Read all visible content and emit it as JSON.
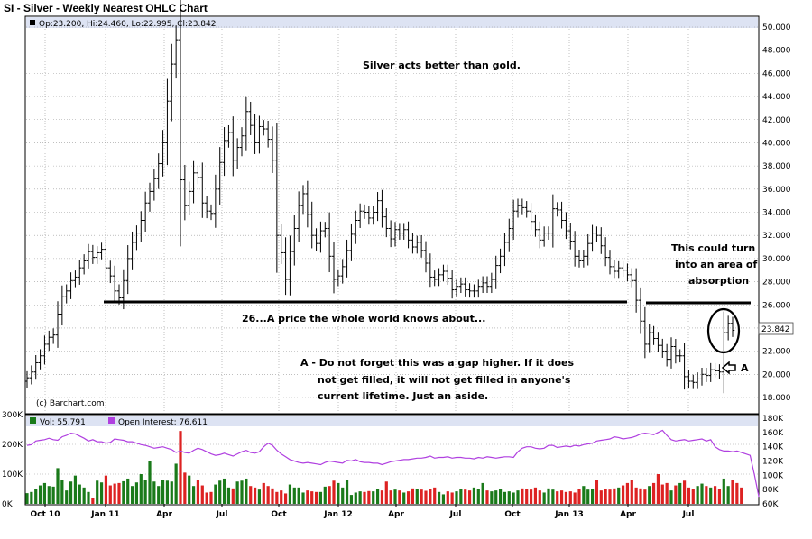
{
  "title": "SI - Silver - Weekly Nearest OHLC Chart",
  "ohlc_label": "Op:23.200, Hi:24.460, Lo:22.995, Cl:23.842",
  "last_price": "23.842",
  "credit": "(c) Barchart.com",
  "annotations": {
    "top": "Silver acts better than gold.",
    "right": [
      "This could turn",
      "into an area of",
      "absorption"
    ],
    "line26": "26...A price the whole world knows about...",
    "a_note": [
      "A - Do not forget this was a gap higher.  If it does",
      "not get filled, it will not get filled in anyone's",
      "current lifetime.   Just an aside."
    ],
    "a_label": "A"
  },
  "volume_legend": "Vol: 55,791",
  "oi_legend": "Open Interest: 76,611",
  "colors": {
    "up": "#1a7a1a",
    "down": "#dd2222",
    "oi": "#b040e0",
    "price": "#000000",
    "grid": "#999999"
  },
  "chart_data": [
    {
      "type": "ohlc",
      "title": "SI - Silver - Weekly Nearest OHLC Chart",
      "x_ticks": [
        "Oct 10",
        "Jan 11",
        "Apr",
        "Jul",
        "Oct",
        "Jan 12",
        "Apr",
        "Jul",
        "Oct",
        "Jan 13",
        "Apr",
        "Jul"
      ],
      "y_ticks": [
        "18.000",
        "20.000",
        "22.000",
        "24.000",
        "26.000",
        "28.000",
        "30.000",
        "32.000",
        "34.000",
        "36.000",
        "38.000",
        "40.000",
        "42.000",
        "44.000",
        "46.000",
        "48.000",
        "50.000"
      ],
      "ylim": [
        17,
        50.5
      ],
      "grid": true,
      "horizontal_level": 26.2,
      "closes": [
        19.7,
        20.2,
        21.0,
        21.6,
        22.6,
        23.2,
        23.4,
        25.2,
        26.7,
        27.2,
        28.1,
        28.4,
        29.2,
        29.8,
        30.6,
        30.1,
        30.5,
        30.8,
        29.2,
        28.5,
        27.2,
        26.6,
        28.1,
        30.0,
        31.4,
        32.2,
        33.3,
        34.8,
        35.8,
        36.9,
        38.2,
        40.0,
        43.6,
        46.8,
        48.9,
        36.8,
        34.6,
        35.8,
        37.4,
        37.0,
        34.8,
        34.1,
        33.9,
        36.0,
        38.3,
        40.2,
        40.9,
        38.5,
        39.6,
        40.6,
        42.7,
        41.5,
        40.0,
        41.4,
        41.2,
        40.3,
        38.5,
        32.0,
        30.5,
        28.2,
        30.6,
        32.6,
        34.6,
        35.6,
        33.8,
        32.0,
        31.3,
        32.4,
        32.6,
        30.2,
        28.2,
        28.5,
        29.3,
        30.7,
        32.1,
        33.3,
        34.1,
        34.0,
        33.5,
        34.0,
        35.0,
        33.6,
        32.6,
        31.7,
        32.5,
        32.2,
        32.5,
        31.6,
        31.0,
        31.4,
        30.7,
        29.6,
        28.4,
        28.2,
        28.6,
        28.9,
        28.3,
        27.3,
        27.6,
        27.8,
        27.3,
        27.2,
        27.2,
        27.6,
        27.9,
        27.6,
        28.2,
        29.4,
        30.2,
        31.4,
        32.6,
        34.1,
        34.6,
        34.4,
        34.1,
        33.2,
        32.5,
        31.6,
        32.2,
        32.2,
        34.3,
        34.2,
        33.3,
        32.4,
        31.5,
        30.2,
        29.8,
        30.2,
        31.3,
        32.2,
        32.0,
        31.1,
        30.1,
        29.3,
        28.9,
        29.2,
        29.0,
        28.6,
        28.1,
        26.4,
        24.6,
        22.6,
        23.6,
        23.1,
        22.5,
        22.0,
        21.3,
        22.4,
        21.6,
        21.6,
        19.8,
        19.4,
        19.3,
        19.6,
        20.0,
        19.9,
        20.4,
        20.3,
        20.2,
        23.6,
        24.4,
        23.8
      ],
      "volume_ylim": [
        0,
        300000
      ],
      "oi_ylim": [
        60000,
        180000
      ],
      "volume_ticks": [
        "0K",
        "100K",
        "200K",
        "300K"
      ],
      "oi_ticks": [
        "60K",
        "80K",
        "100K",
        "120K",
        "140K",
        "160K",
        "180K"
      ],
      "volume": [
        36000,
        40000,
        50000,
        62000,
        70000,
        60000,
        58000,
        120000,
        80000,
        45000,
        75000,
        95000,
        65000,
        55000,
        40000,
        20000,
        78000,
        72000,
        95000,
        62000,
        68000,
        70000,
        76000,
        85000,
        60000,
        72000,
        100000,
        80000,
        145000,
        75000,
        60000,
        80000,
        78000,
        75000,
        135000,
        245000,
        105000,
        95000,
        60000,
        80000,
        62000,
        38000,
        40000,
        65000,
        78000,
        85000,
        55000,
        52000,
        75000,
        78000,
        85000,
        60000,
        55000,
        48000,
        70000,
        60000,
        52000,
        40000,
        45000,
        35000,
        65000,
        55000,
        55000,
        38000,
        45000,
        42000,
        40000,
        40000,
        58000,
        60000,
        78000,
        70000,
        55000,
        80000,
        30000,
        38000,
        42000,
        40000,
        43000,
        42000,
        50000,
        45000,
        75000,
        45000,
        48000,
        45000,
        38000,
        42000,
        52000,
        50000,
        48000,
        44000,
        50000,
        55000,
        40000,
        32000,
        42000,
        38000,
        42000,
        50000,
        48000,
        45000,
        55000,
        50000,
        70000,
        45000,
        42000,
        45000,
        50000,
        40000,
        42000,
        38000,
        45000,
        52000,
        50000,
        48000,
        55000,
        45000,
        38000,
        52000,
        48000,
        42000,
        45000,
        40000,
        42000,
        38000,
        50000,
        60000,
        48000,
        50000,
        80000,
        45000,
        50000,
        48000,
        52000,
        55000,
        62000,
        70000,
        80000,
        55000,
        52000,
        48000,
        60000,
        70000,
        100000,
        65000,
        70000,
        45000,
        62000,
        70000,
        78000,
        55000,
        50000,
        60000,
        68000,
        60000,
        55000,
        60000,
        50000,
        85000,
        60000,
        80000,
        70000,
        55000
      ],
      "open_interest": [
        142000,
        143000,
        148000,
        149000,
        150000,
        152000,
        150000,
        149000,
        154000,
        156000,
        159000,
        158000,
        155000,
        152000,
        148000,
        150000,
        147000,
        147000,
        145000,
        146000,
        151000,
        150000,
        149000,
        147000,
        147000,
        145000,
        143000,
        142000,
        140000,
        138000,
        139000,
        140000,
        138000,
        136000,
        132000,
        134000,
        132000,
        131000,
        135000,
        138000,
        136000,
        133000,
        130000,
        128000,
        129000,
        131000,
        129000,
        127000,
        130000,
        133000,
        135000,
        132000,
        131000,
        133000,
        140000,
        145000,
        142000,
        135000,
        130000,
        126000,
        122000,
        120000,
        118000,
        117000,
        118000,
        117000,
        116000,
        115000,
        118000,
        120000,
        119000,
        118000,
        117000,
        121000,
        120000,
        122000,
        119000,
        118000,
        118000,
        117000,
        117000,
        115000,
        117000,
        119000,
        120000,
        121000,
        122000,
        122000,
        123000,
        124000,
        124000,
        125000,
        127000,
        124000,
        125000,
        125000,
        126000,
        124000,
        125000,
        125000,
        124000,
        124000,
        123000,
        125000,
        124000,
        126000,
        125000,
        124000,
        125000,
        126000,
        126000,
        125000,
        133000,
        138000,
        140000,
        140000,
        138000,
        137000,
        138000,
        142000,
        142000,
        139000,
        140000,
        141000,
        140000,
        142000,
        141000,
        143000,
        144000,
        145000,
        148000,
        149000,
        150000,
        151000,
        154000,
        153000,
        151000,
        152000,
        153000,
        155000,
        158000,
        159000,
        158000,
        157000,
        160000,
        163000,
        156000,
        150000,
        148000,
        149000,
        150000,
        148000,
        149000,
        150000,
        151000,
        148000,
        150000,
        140000,
        136000,
        134000,
        134000,
        133000,
        134000,
        132000,
        130000,
        128000,
        100000,
        70000
      ]
    }
  ]
}
